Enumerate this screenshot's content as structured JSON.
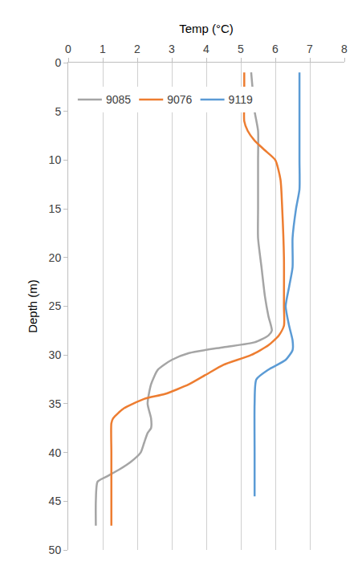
{
  "chart_data": {
    "type": "line",
    "x_label": "Temp (°C)",
    "y_label": "Depth (m)",
    "xlim": [
      0,
      8
    ],
    "xticks": [
      0,
      1,
      2,
      3,
      4,
      5,
      6,
      7,
      8
    ],
    "ylim": [
      50,
      0
    ],
    "yticks": [
      0,
      5,
      10,
      15,
      20,
      25,
      30,
      35,
      40,
      45,
      50
    ],
    "grid": "x",
    "legend": "top left",
    "series": [
      {
        "name": "9085",
        "color": "#a5a5a5",
        "x": [
          5.3,
          5.35,
          5.4,
          5.5,
          5.5,
          5.5,
          5.5,
          5.6,
          5.7,
          5.8,
          5.9,
          5.8,
          5.4,
          4.5,
          3.5,
          3.0,
          2.6,
          2.4,
          2.3,
          2.4,
          2.4,
          2.3,
          2.2,
          2.1,
          1.8,
          1.5,
          1.1,
          0.85,
          0.8,
          0.8
        ],
        "y": [
          1,
          3,
          5,
          7,
          10,
          15,
          18,
          21,
          24,
          26,
          27.5,
          28,
          28.7,
          29.2,
          29.8,
          30.5,
          31.5,
          33,
          35,
          36.5,
          37.5,
          38,
          39,
          40,
          41,
          41.7,
          42.5,
          43,
          45,
          47.5
        ]
      },
      {
        "name": "9076",
        "color": "#ed7d31",
        "x": [
          5.1,
          5.1,
          5.1,
          5.2,
          5.4,
          5.7,
          6.0,
          6.15,
          6.2,
          6.25,
          6.25,
          6.25,
          6.1,
          5.8,
          5.3,
          4.5,
          4.0,
          3.5,
          2.8,
          2.2,
          1.6,
          1.3,
          1.25,
          1.25,
          1.25,
          1.25
        ],
        "y": [
          1,
          4,
          6,
          7,
          8,
          9,
          10,
          12,
          15,
          20,
          25,
          27,
          28,
          29,
          30,
          31,
          32,
          33,
          34,
          34.5,
          35.5,
          36.5,
          37,
          40,
          45,
          47.5
        ]
      },
      {
        "name": "9119",
        "color": "#5b9bd5",
        "x": [
          6.7,
          6.7,
          6.7,
          6.7,
          6.6,
          6.5,
          6.5,
          6.4,
          6.3,
          6.4,
          6.5,
          6.5,
          6.3,
          5.8,
          5.45,
          5.4,
          5.4,
          5.4
        ],
        "y": [
          1,
          5,
          10,
          13,
          15,
          18,
          21,
          23,
          25,
          27,
          28.5,
          29.5,
          30.5,
          31.5,
          32.5,
          35,
          40,
          44.5
        ]
      }
    ]
  }
}
